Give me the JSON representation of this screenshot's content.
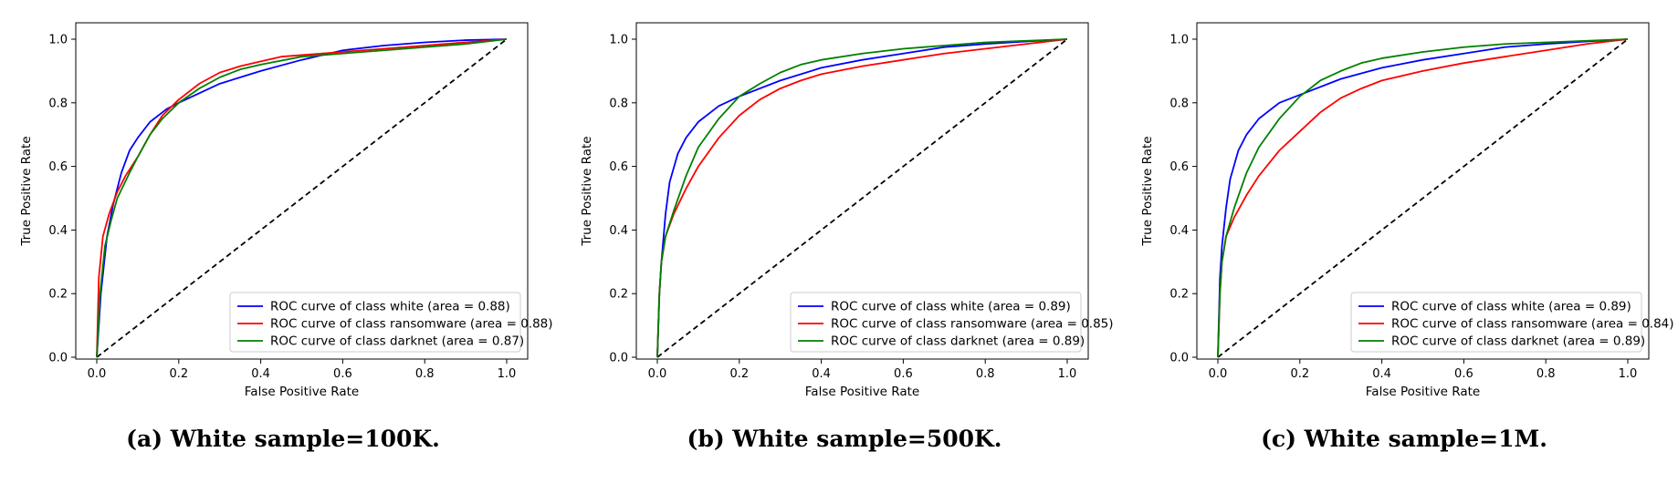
{
  "chart_data": [
    {
      "type": "line",
      "caption": "(a) White sample=100K.",
      "xlabel": "False Positive Rate",
      "ylabel": "True Positive Rate",
      "xlim": [
        0,
        1
      ],
      "ylim": [
        0,
        1.05
      ],
      "xticks": [
        "0.0",
        "0.2",
        "0.4",
        "0.6",
        "0.8",
        "1.0"
      ],
      "yticks": [
        "0.0",
        "0.2",
        "0.4",
        "0.6",
        "0.8",
        "1.0"
      ],
      "grid": false,
      "legend_position": "lower right",
      "diagonal": true,
      "series": [
        {
          "name": "ROC curve of class white (area = 0.88)",
          "color": "#0000ff",
          "points": [
            [
              0,
              0
            ],
            [
              0.01,
              0.2
            ],
            [
              0.025,
              0.38
            ],
            [
              0.04,
              0.48
            ],
            [
              0.06,
              0.58
            ],
            [
              0.08,
              0.65
            ],
            [
              0.1,
              0.69
            ],
            [
              0.13,
              0.74
            ],
            [
              0.17,
              0.78
            ],
            [
              0.2,
              0.8
            ],
            [
              0.25,
              0.83
            ],
            [
              0.3,
              0.86
            ],
            [
              0.4,
              0.9
            ],
            [
              0.5,
              0.935
            ],
            [
              0.6,
              0.965
            ],
            [
              0.7,
              0.98
            ],
            [
              0.8,
              0.99
            ],
            [
              0.9,
              0.997
            ],
            [
              1,
              1
            ]
          ]
        },
        {
          "name": "ROC curve of class ransomware (area = 0.88)",
          "color": "#ff0000",
          "points": [
            [
              0,
              0
            ],
            [
              0.005,
              0.25
            ],
            [
              0.015,
              0.38
            ],
            [
              0.03,
              0.45
            ],
            [
              0.05,
              0.52
            ],
            [
              0.07,
              0.57
            ],
            [
              0.1,
              0.63
            ],
            [
              0.13,
              0.7
            ],
            [
              0.16,
              0.76
            ],
            [
              0.2,
              0.81
            ],
            [
              0.25,
              0.86
            ],
            [
              0.3,
              0.895
            ],
            [
              0.35,
              0.915
            ],
            [
              0.4,
              0.93
            ],
            [
              0.45,
              0.945
            ],
            [
              0.5,
              0.95
            ],
            [
              0.6,
              0.96
            ],
            [
              0.7,
              0.97
            ],
            [
              0.8,
              0.98
            ],
            [
              0.9,
              0.99
            ],
            [
              1,
              1
            ]
          ]
        },
        {
          "name": "ROC curve of class darknet (area = 0.87)",
          "color": "#008000",
          "points": [
            [
              0,
              0
            ],
            [
              0.008,
              0.2
            ],
            [
              0.02,
              0.35
            ],
            [
              0.035,
              0.43
            ],
            [
              0.05,
              0.5
            ],
            [
              0.08,
              0.58
            ],
            [
              0.1,
              0.63
            ],
            [
              0.13,
              0.7
            ],
            [
              0.16,
              0.75
            ],
            [
              0.2,
              0.8
            ],
            [
              0.25,
              0.845
            ],
            [
              0.3,
              0.88
            ],
            [
              0.35,
              0.905
            ],
            [
              0.4,
              0.92
            ],
            [
              0.5,
              0.945
            ],
            [
              0.6,
              0.955
            ],
            [
              0.7,
              0.965
            ],
            [
              0.8,
              0.975
            ],
            [
              0.9,
              0.985
            ],
            [
              1,
              1
            ]
          ]
        }
      ]
    },
    {
      "type": "line",
      "caption": "(b) White sample=500K.",
      "xlabel": "False Positive Rate",
      "ylabel": "True Positive Rate",
      "xlim": [
        0,
        1
      ],
      "ylim": [
        0,
        1.05
      ],
      "xticks": [
        "0.0",
        "0.2",
        "0.4",
        "0.6",
        "0.8",
        "1.0"
      ],
      "yticks": [
        "0.0",
        "0.2",
        "0.4",
        "0.6",
        "0.8",
        "1.0"
      ],
      "grid": false,
      "legend_position": "lower right",
      "diagonal": true,
      "series": [
        {
          "name": "ROC curve of class white (area = 0.89)",
          "color": "#0000ff",
          "points": [
            [
              0,
              0
            ],
            [
              0.005,
              0.2
            ],
            [
              0.01,
              0.3
            ],
            [
              0.02,
              0.45
            ],
            [
              0.03,
              0.55
            ],
            [
              0.05,
              0.64
            ],
            [
              0.07,
              0.69
            ],
            [
              0.1,
              0.74
            ],
            [
              0.15,
              0.79
            ],
            [
              0.2,
              0.82
            ],
            [
              0.3,
              0.87
            ],
            [
              0.4,
              0.91
            ],
            [
              0.5,
              0.935
            ],
            [
              0.6,
              0.955
            ],
            [
              0.7,
              0.975
            ],
            [
              0.8,
              0.985
            ],
            [
              0.9,
              0.993
            ],
            [
              1,
              1
            ]
          ]
        },
        {
          "name": "ROC curve of class ransomware (area = 0.85)",
          "color": "#ff0000",
          "points": [
            [
              0,
              0
            ],
            [
              0.005,
              0.2
            ],
            [
              0.01,
              0.3
            ],
            [
              0.02,
              0.38
            ],
            [
              0.04,
              0.45
            ],
            [
              0.07,
              0.53
            ],
            [
              0.1,
              0.6
            ],
            [
              0.15,
              0.69
            ],
            [
              0.2,
              0.76
            ],
            [
              0.25,
              0.81
            ],
            [
              0.3,
              0.845
            ],
            [
              0.35,
              0.87
            ],
            [
              0.4,
              0.89
            ],
            [
              0.5,
              0.915
            ],
            [
              0.6,
              0.935
            ],
            [
              0.7,
              0.955
            ],
            [
              0.8,
              0.97
            ],
            [
              0.9,
              0.985
            ],
            [
              1,
              1
            ]
          ]
        },
        {
          "name": "ROC curve of class darknet (area = 0.89)",
          "color": "#008000",
          "points": [
            [
              0,
              0
            ],
            [
              0.005,
              0.2
            ],
            [
              0.01,
              0.3
            ],
            [
              0.02,
              0.38
            ],
            [
              0.04,
              0.46
            ],
            [
              0.07,
              0.57
            ],
            [
              0.1,
              0.66
            ],
            [
              0.15,
              0.75
            ],
            [
              0.2,
              0.82
            ],
            [
              0.25,
              0.86
            ],
            [
              0.3,
              0.895
            ],
            [
              0.35,
              0.92
            ],
            [
              0.4,
              0.935
            ],
            [
              0.5,
              0.955
            ],
            [
              0.6,
              0.97
            ],
            [
              0.7,
              0.98
            ],
            [
              0.8,
              0.99
            ],
            [
              0.9,
              0.995
            ],
            [
              1,
              1
            ]
          ]
        }
      ]
    },
    {
      "type": "line",
      "caption": "(c) White sample=1M.",
      "xlabel": "False Positive Rate",
      "ylabel": "True Positive Rate",
      "xlim": [
        0,
        1
      ],
      "ylim": [
        0,
        1.05
      ],
      "xticks": [
        "0.0",
        "0.2",
        "0.4",
        "0.6",
        "0.8",
        "1.0"
      ],
      "yticks": [
        "0.0",
        "0.2",
        "0.4",
        "0.6",
        "0.8",
        "1.0"
      ],
      "grid": false,
      "legend_position": "lower right",
      "diagonal": true,
      "series": [
        {
          "name": "ROC curve of class white (area = 0.89)",
          "color": "#0000ff",
          "points": [
            [
              0,
              0
            ],
            [
              0.005,
              0.25
            ],
            [
              0.01,
              0.35
            ],
            [
              0.02,
              0.47
            ],
            [
              0.03,
              0.56
            ],
            [
              0.05,
              0.65
            ],
            [
              0.07,
              0.7
            ],
            [
              0.1,
              0.75
            ],
            [
              0.15,
              0.8
            ],
            [
              0.2,
              0.825
            ],
            [
              0.3,
              0.875
            ],
            [
              0.4,
              0.91
            ],
            [
              0.5,
              0.935
            ],
            [
              0.6,
              0.955
            ],
            [
              0.7,
              0.975
            ],
            [
              0.8,
              0.985
            ],
            [
              0.9,
              0.993
            ],
            [
              1,
              1
            ]
          ]
        },
        {
          "name": "ROC curve of class ransomware (area = 0.84)",
          "color": "#ff0000",
          "points": [
            [
              0,
              0
            ],
            [
              0.005,
              0.2
            ],
            [
              0.01,
              0.3
            ],
            [
              0.02,
              0.38
            ],
            [
              0.04,
              0.44
            ],
            [
              0.07,
              0.51
            ],
            [
              0.1,
              0.57
            ],
            [
              0.15,
              0.65
            ],
            [
              0.2,
              0.71
            ],
            [
              0.25,
              0.77
            ],
            [
              0.3,
              0.815
            ],
            [
              0.35,
              0.845
            ],
            [
              0.4,
              0.87
            ],
            [
              0.5,
              0.9
            ],
            [
              0.6,
              0.925
            ],
            [
              0.7,
              0.945
            ],
            [
              0.8,
              0.965
            ],
            [
              0.9,
              0.985
            ],
            [
              1,
              1
            ]
          ]
        },
        {
          "name": "ROC curve of class darknet (area = 0.89)",
          "color": "#008000",
          "points": [
            [
              0,
              0
            ],
            [
              0.005,
              0.2
            ],
            [
              0.01,
              0.3
            ],
            [
              0.02,
              0.38
            ],
            [
              0.04,
              0.47
            ],
            [
              0.07,
              0.58
            ],
            [
              0.1,
              0.66
            ],
            [
              0.15,
              0.75
            ],
            [
              0.2,
              0.82
            ],
            [
              0.25,
              0.87
            ],
            [
              0.3,
              0.9
            ],
            [
              0.35,
              0.925
            ],
            [
              0.4,
              0.94
            ],
            [
              0.5,
              0.96
            ],
            [
              0.6,
              0.975
            ],
            [
              0.7,
              0.985
            ],
            [
              0.8,
              0.99
            ],
            [
              0.9,
              0.995
            ],
            [
              1,
              1
            ]
          ]
        }
      ]
    }
  ]
}
